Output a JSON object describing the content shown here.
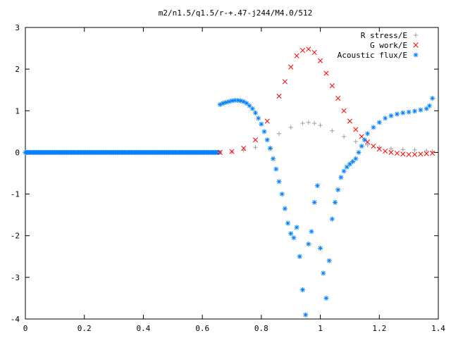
{
  "chart_data": {
    "type": "scatter",
    "title": "m2/n1.5/q1.5/r-+.47-j244/M4.0/512",
    "xlim": [
      0,
      1.4
    ],
    "ylim": [
      -4,
      3
    ],
    "grid": false,
    "legend_position": "top-right",
    "x_ticks": [
      "0",
      "0.2",
      "0.4",
      "0.6",
      "0.8",
      "1",
      "1.2",
      "1.4"
    ],
    "y_ticks": [
      "3",
      "2",
      "1",
      "0",
      "-1",
      "-2",
      "-3",
      "-4"
    ],
    "series": [
      {
        "name": "R stress/E",
        "marker": "plus",
        "color": "#a0a0a0",
        "x": [
          0.66,
          0.7,
          0.74,
          0.78,
          0.82,
          0.86,
          0.9,
          0.94,
          0.96,
          0.98,
          1.0,
          1.04,
          1.08,
          1.12,
          1.16,
          1.2,
          1.24,
          1.28,
          1.32,
          1.36,
          1.38
        ],
        "y": [
          0.0,
          0.01,
          0.05,
          0.12,
          0.3,
          0.45,
          0.6,
          0.7,
          0.72,
          0.7,
          0.65,
          0.52,
          0.38,
          0.26,
          0.18,
          0.12,
          0.09,
          0.07,
          0.06,
          0.04,
          0.02
        ]
      },
      {
        "name": "G work/E",
        "marker": "cross",
        "color": "#ff0000",
        "x": [
          0.66,
          0.7,
          0.74,
          0.78,
          0.82,
          0.86,
          0.88,
          0.9,
          0.92,
          0.94,
          0.96,
          0.98,
          1.0,
          1.02,
          1.04,
          1.06,
          1.08,
          1.1,
          1.12,
          1.14,
          1.16,
          1.18,
          1.2,
          1.22,
          1.24,
          1.26,
          1.28,
          1.3,
          1.32,
          1.34,
          1.36,
          1.38
        ],
        "y": [
          0.0,
          0.02,
          0.1,
          0.3,
          0.75,
          1.35,
          1.7,
          2.05,
          2.32,
          2.45,
          2.48,
          2.4,
          2.2,
          1.9,
          1.6,
          1.3,
          1.0,
          0.75,
          0.55,
          0.38,
          0.25,
          0.15,
          0.08,
          0.03,
          0.0,
          -0.02,
          -0.04,
          -0.05,
          -0.05,
          -0.04,
          -0.03,
          -0.02
        ]
      },
      {
        "name": "Acoustic flux/E",
        "marker": "star",
        "color": "#0080ff",
        "x": [
          0.66,
          0.67,
          0.68,
          0.69,
          0.7,
          0.71,
          0.72,
          0.73,
          0.74,
          0.75,
          0.76,
          0.77,
          0.78,
          0.79,
          0.8,
          0.81,
          0.82,
          0.83,
          0.84,
          0.85,
          0.86,
          0.87,
          0.88,
          0.89,
          0.9,
          0.91,
          0.92,
          0.93,
          0.94,
          0.95,
          0.96,
          0.97,
          0.98,
          0.99,
          1.0,
          1.01,
          1.02,
          1.03,
          1.04,
          1.05,
          1.06,
          1.07,
          1.08,
          1.09,
          1.1,
          1.11,
          1.12,
          1.13,
          1.14,
          1.15,
          1.16,
          1.18,
          1.2,
          1.22,
          1.24,
          1.26,
          1.28,
          1.3,
          1.32,
          1.34,
          1.36,
          1.37,
          1.38
        ],
        "y": [
          1.15,
          1.18,
          1.2,
          1.22,
          1.24,
          1.25,
          1.25,
          1.24,
          1.22,
          1.18,
          1.12,
          1.05,
          0.95,
          0.82,
          0.68,
          0.5,
          0.3,
          0.1,
          -0.15,
          -0.4,
          -0.7,
          -1.0,
          -1.35,
          -1.7,
          -1.95,
          -2.05,
          -1.8,
          -2.5,
          -3.3,
          -3.9,
          -2.2,
          -1.9,
          -1.2,
          -0.8,
          -2.3,
          -2.9,
          -3.5,
          -2.6,
          -1.6,
          -1.2,
          -0.9,
          -0.6,
          -0.45,
          -0.35,
          -0.28,
          -0.22,
          -0.15,
          0.0,
          0.15,
          0.3,
          0.45,
          0.6,
          0.72,
          0.82,
          0.88,
          0.92,
          0.95,
          0.97,
          0.99,
          1.02,
          1.05,
          1.12,
          1.3
        ]
      }
    ]
  }
}
